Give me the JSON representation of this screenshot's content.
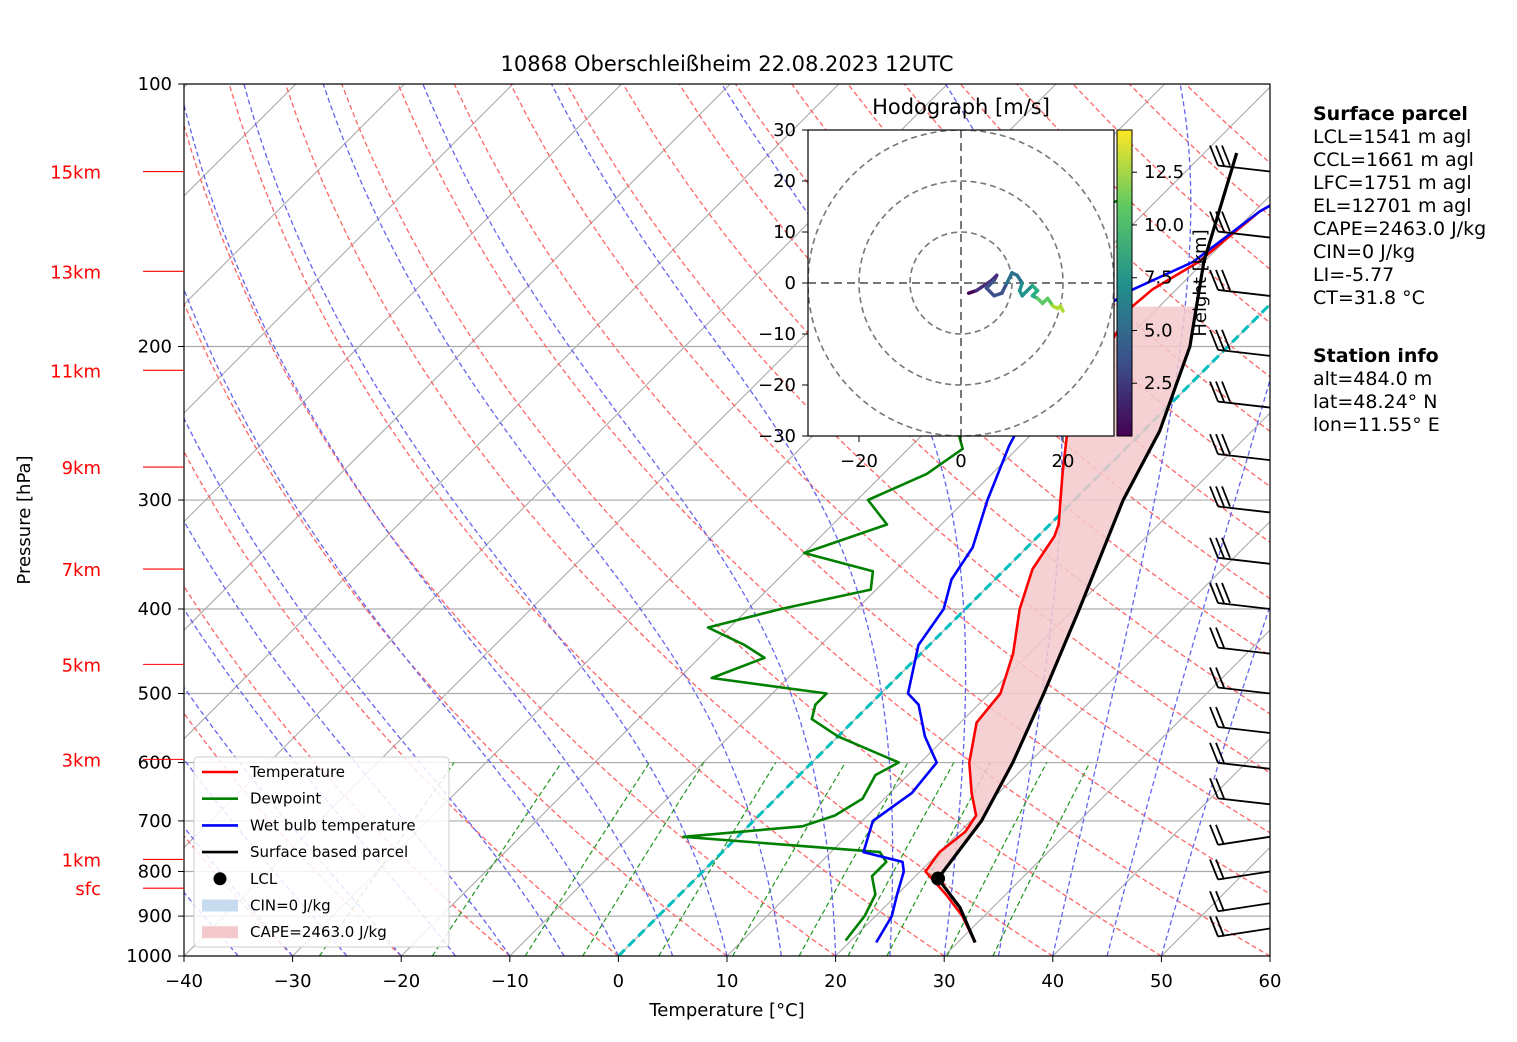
{
  "chart_data": {
    "type": "skew-t",
    "title": "10868 Oberschleißheim 22.08.2023 12UTC",
    "xlabel": "Temperature [°C]",
    "ylabel": "Pressure [hPa]",
    "xlim": [
      -40,
      60
    ],
    "ylim": [
      1000,
      100
    ],
    "x_ticks": [
      "−40",
      "−30",
      "−20",
      "−10",
      "0",
      "10",
      "20",
      "30",
      "40",
      "50",
      "60"
    ],
    "y_ticks": [
      {
        "p": 100,
        "label": "100"
      },
      {
        "p": 200,
        "label": "200"
      },
      {
        "p": 300,
        "label": "300"
      },
      {
        "p": 400,
        "label": "400"
      },
      {
        "p": 500,
        "label": "500"
      },
      {
        "p": 600,
        "label": "600"
      },
      {
        "p": 700,
        "label": "700"
      },
      {
        "p": 800,
        "label": "800"
      },
      {
        "p": 900,
        "label": "900"
      },
      {
        "p": 1000,
        "label": "1000"
      }
    ],
    "height_labels": [
      {
        "label": "15km",
        "p": 126
      },
      {
        "label": "13km",
        "p": 164
      },
      {
        "label": "11km",
        "p": 213
      },
      {
        "label": "9km",
        "p": 275
      },
      {
        "label": "7km",
        "p": 360
      },
      {
        "label": "5km",
        "p": 463
      },
      {
        "label": "3km",
        "p": 595
      },
      {
        "label": "1km",
        "p": 775
      },
      {
        "label": "sfc",
        "p": 836
      }
    ],
    "line_colors": {
      "temperature": "#ff0000",
      "dewpoint": "#008000",
      "wetbulb": "#0000ff",
      "parcel": "#000000",
      "cape_fill": "#f3c9cd",
      "cin_fill": "#c7dbef",
      "dry_adiabat": "#ff6464",
      "moist_adiabat": "#6464f0",
      "mixing_ratio": "#1e961e",
      "isotherm": "#aaaaaa",
      "zero_isotherm": "#00bebe",
      "height": "#ff0000"
    },
    "series": [
      {
        "name": "Temperature",
        "points": [
          [
            31.6,
            965
          ],
          [
            28,
            900
          ],
          [
            24.5,
            850
          ],
          [
            20.5,
            800
          ],
          [
            20,
            760
          ],
          [
            20.5,
            720
          ],
          [
            20,
            690
          ],
          [
            17.5,
            650
          ],
          [
            14.5,
            600
          ],
          [
            11.5,
            540
          ],
          [
            11,
            500
          ],
          [
            8.5,
            450
          ],
          [
            5,
            400
          ],
          [
            2.5,
            360
          ],
          [
            1.5,
            330
          ],
          [
            0.8,
            320
          ],
          [
            -3.5,
            280
          ],
          [
            -7,
            250
          ],
          [
            -9.5,
            222
          ],
          [
            -11,
            200
          ],
          [
            -12.5,
            180
          ],
          [
            -12.2,
            172
          ],
          [
            -10.5,
            160
          ],
          [
            -9.5,
            140
          ],
          [
            -7.5,
            130
          ],
          [
            -5.5,
            123
          ],
          [
            -4.7,
            120
          ]
        ]
      },
      {
        "name": "Dewpoint",
        "points": [
          [
            19.5,
            960
          ],
          [
            19,
            900
          ],
          [
            18,
            850
          ],
          [
            16,
            810
          ],
          [
            16,
            780
          ],
          [
            14.5,
            760
          ],
          [
            -5,
            730
          ],
          [
            5,
            710
          ],
          [
            7,
            690
          ],
          [
            8,
            660
          ],
          [
            7,
            620
          ],
          [
            8,
            600
          ],
          [
            0,
            560
          ],
          [
            -4,
            535
          ],
          [
            -5,
            515
          ],
          [
            -5,
            500
          ],
          [
            -17,
            480
          ],
          [
            -14,
            455
          ],
          [
            -17,
            440
          ],
          [
            -22,
            420
          ],
          [
            -17,
            400
          ],
          [
            -10.5,
            380
          ],
          [
            -12,
            362
          ],
          [
            -20,
            345
          ],
          [
            -15,
            320
          ],
          [
            -19,
            300
          ],
          [
            -16,
            280
          ],
          [
            -15,
            262
          ],
          [
            -18,
            245
          ],
          [
            -18,
            230
          ],
          [
            -19.3,
            215
          ],
          [
            -19,
            195
          ],
          [
            -17.5,
            180
          ],
          [
            -25,
            170
          ],
          [
            -25,
            150
          ],
          [
            -25.5,
            140
          ],
          [
            -23,
            135
          ],
          [
            -25.5,
            125
          ],
          [
            -26,
            123
          ]
        ]
      },
      {
        "name": "Wet bulb temperature",
        "points": [
          [
            22.5,
            965
          ],
          [
            21.5,
            900
          ],
          [
            20,
            850
          ],
          [
            18.5,
            800
          ],
          [
            17.5,
            780
          ],
          [
            13,
            760
          ],
          [
            11,
            700
          ],
          [
            12,
            650
          ],
          [
            11.5,
            600
          ],
          [
            8,
            560
          ],
          [
            4.5,
            515
          ],
          [
            2.5,
            500
          ],
          [
            -1,
            440
          ],
          [
            -2,
            400
          ],
          [
            -4,
            370
          ],
          [
            -5,
            340
          ],
          [
            -8,
            300
          ],
          [
            -11,
            260
          ],
          [
            -13,
            230
          ],
          [
            -13.5,
            210
          ],
          [
            -15,
            195
          ],
          [
            -15,
            180
          ],
          [
            -14,
            172
          ],
          [
            -11,
            160
          ],
          [
            -9.5,
            140
          ],
          [
            -7.5,
            130
          ],
          [
            -5.5,
            123
          ],
          [
            -4.7,
            120
          ]
        ]
      },
      {
        "name": "Surface based parcel",
        "points": [
          [
            31.6,
            965
          ],
          [
            27,
            880
          ],
          [
            22.3,
            815
          ],
          [
            21,
            700
          ],
          [
            18.5,
            600
          ],
          [
            15,
            500
          ],
          [
            10.5,
            400
          ],
          [
            4.5,
            300
          ],
          [
            1.5,
            250
          ],
          [
            -3.5,
            200
          ],
          [
            -10,
            160
          ],
          [
            -17,
            120
          ]
        ]
      }
    ],
    "lcl": {
      "p": 815,
      "t": 22.3
    },
    "legend": [
      "Temperature",
      "Dewpoint",
      "Wet bulb temperature",
      "Surface based parcel",
      "LCL",
      "CIN=0 J/kg",
      "CAPE=2463.0 J/kg"
    ],
    "legend_position": "lower-left",
    "wind_barb_levels": [
      126,
      150,
      175,
      205,
      235,
      270,
      310,
      355,
      400,
      450,
      500,
      555,
      610,
      670,
      730,
      800,
      870,
      930
    ],
    "hodograph": {
      "title": "Hodograph [m/s]",
      "xlim": [
        -30,
        30
      ],
      "ylim": [
        -30,
        30
      ],
      "x_ticks": [
        "−20",
        "0",
        "20"
      ],
      "y_ticks": [
        {
          "v": 30,
          "label": "30"
        },
        {
          "v": 20,
          "label": "20"
        },
        {
          "v": 10,
          "label": "10"
        },
        {
          "v": 0,
          "label": "0"
        },
        {
          "v": -10,
          "label": "−10"
        },
        {
          "v": -20,
          "label": "−20"
        },
        {
          "v": -30,
          "label": "−30"
        }
      ],
      "rings": [
        10,
        20,
        30
      ],
      "colorbar_label": "Height [km]",
      "colorbar_ticks": [
        "2.5",
        "5.0",
        "7.5",
        "10.0",
        "12.5"
      ],
      "colorbar_range": [
        0,
        14.5
      ],
      "points": [
        [
          1.5,
          -2
        ],
        [
          3,
          -1.5
        ],
        [
          4.5,
          -0.5
        ],
        [
          6,
          0.5
        ],
        [
          7,
          1.5
        ],
        [
          6.5,
          0.5
        ],
        [
          5,
          -1
        ],
        [
          6.5,
          -2.5
        ],
        [
          8,
          -2
        ],
        [
          9,
          0
        ],
        [
          10,
          2
        ],
        [
          11,
          1.5
        ],
        [
          12,
          0
        ],
        [
          11.5,
          -1.5
        ],
        [
          12,
          -2.5
        ],
        [
          13,
          -1.5
        ],
        [
          14,
          -0.5
        ],
        [
          15,
          -1.5
        ],
        [
          14,
          -2.5
        ],
        [
          15,
          -3
        ],
        [
          16,
          -4
        ],
        [
          17,
          -3
        ],
        [
          18,
          -4.5
        ],
        [
          19,
          -5
        ],
        [
          19.5,
          -4.5
        ],
        [
          20,
          -5.5
        ]
      ],
      "heights_km": [
        0.5,
        1,
        1.5,
        2,
        2.5,
        3,
        3.5,
        4,
        4.5,
        5,
        5.5,
        6,
        6.5,
        7,
        7.5,
        8,
        8.5,
        9,
        9.5,
        10,
        10.5,
        11,
        12,
        13,
        13.5,
        14
      ]
    }
  },
  "side_info": {
    "surface_heading": "Surface parcel",
    "lcl": "LCL=1541 m agl",
    "ccl": "CCL=1661 m agl",
    "lfc": "LFC=1751 m agl",
    "el": "EL=12701 m agl",
    "cape": "CAPE=2463.0 J/kg",
    "cin": "CIN=0 J/kg",
    "li": "LI=-5.77",
    "ct": "CT=31.8 °C",
    "station_heading": "Station info",
    "alt": "alt=484.0 m",
    "lat": "lat=48.24° N",
    "lon": "lon=11.55° E"
  }
}
